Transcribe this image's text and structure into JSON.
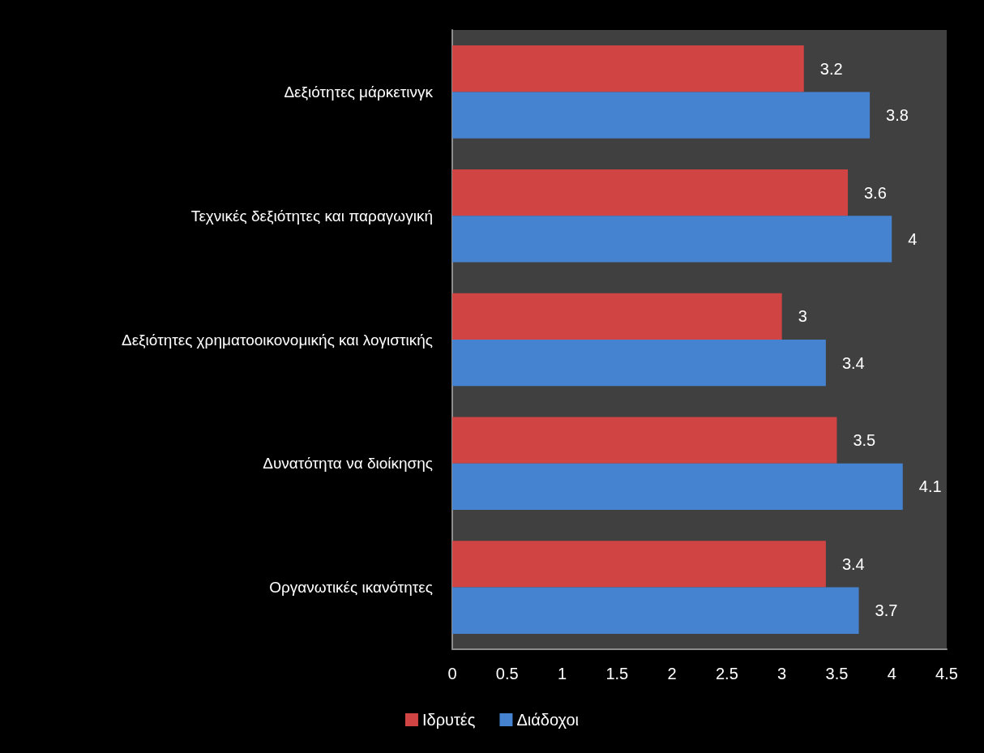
{
  "chart_data": {
    "type": "bar",
    "orientation": "horizontal",
    "categories": [
      "Δεξιότητες μάρκετινγκ",
      "Τεχνικές δεξιότητες και παραγωγική",
      "Δεξιότητες χρηματοοικονομικής και λογιστικής",
      "Δυνατότητα να διοίκησης",
      "Οργανωτικές ικανότητες"
    ],
    "series": [
      {
        "name": "Ιδρυτές",
        "color": "#d04444",
        "values": [
          3.2,
          3.6,
          3,
          3.5,
          3.4
        ]
      },
      {
        "name": "Διάδοχοι",
        "color": "#4582d0",
        "values": [
          3.8,
          4,
          3.4,
          4.1,
          3.7
        ]
      }
    ],
    "xlim": [
      0,
      4.5
    ],
    "xticks": [
      0,
      0.5,
      1,
      1.5,
      2,
      2.5,
      3,
      3.5,
      4,
      4.5
    ],
    "legend": "bottom",
    "data_labels": true
  }
}
